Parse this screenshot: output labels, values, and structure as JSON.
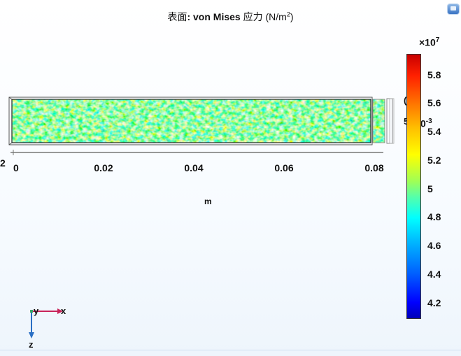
{
  "plot": {
    "title_prefix": "表面",
    "title_main": ": von Mises",
    "title_qty": " 应力 (N/m",
    "title_power": "2",
    "title_close": ")"
  },
  "x_axis": {
    "ticks": [
      "0",
      "0.02",
      "0.04",
      "0.06",
      "0.08"
    ],
    "unit": "m",
    "partial_left": "2"
  },
  "inset": {
    "partial_a": "(",
    "partial_b": "5",
    "exponent_prefix": "×10",
    "exponent_power": "-3"
  },
  "colorbar": {
    "exponent_prefix": "×10",
    "exponent_power": "7",
    "labels": [
      "5.8",
      "5.6",
      "5.4",
      "5.2",
      "5",
      "4.8",
      "4.6",
      "4.4",
      "4.2"
    ],
    "min": 4.1,
    "max": 5.95,
    "colors": {
      "low": "#0000b8",
      "mid": "#ffff00",
      "high": "#c80000"
    }
  },
  "triad": {
    "x_label": "x",
    "y_label": "y",
    "z_label": "z",
    "x_color": "#c8245a",
    "z_color": "#2a6fc4"
  },
  "icons": {
    "view": "screen-view-icon"
  }
}
